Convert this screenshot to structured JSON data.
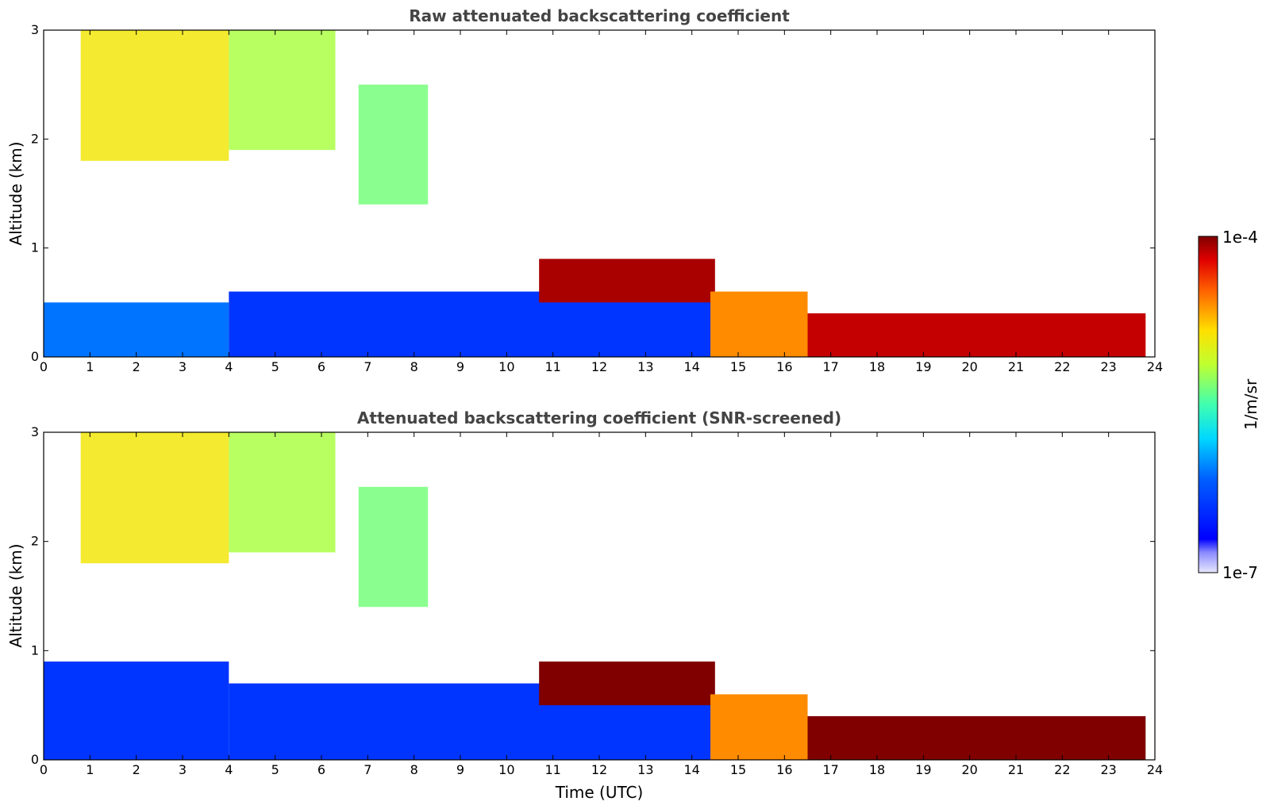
{
  "chart_data": [
    {
      "type": "heatmap",
      "title": "Raw attenuated backscattering coefficient",
      "xlabel": "",
      "ylabel": "Altitude (km)",
      "xlim": [
        0,
        24
      ],
      "ylim": [
        0,
        3
      ],
      "xticks": [
        "0",
        "1",
        "2",
        "3",
        "4",
        "5",
        "6",
        "7",
        "8",
        "9",
        "10",
        "11",
        "12",
        "13",
        "14",
        "15",
        "16",
        "17",
        "18",
        "19",
        "20",
        "21",
        "22",
        "23",
        "24"
      ],
      "yticks": [
        "0",
        "1",
        "2",
        "3"
      ],
      "features": [
        {
          "kind": "cirrus",
          "t": [
            0.8,
            4.0
          ],
          "alt": [
            1.8,
            3.0
          ],
          "level": 0.7
        },
        {
          "kind": "cirrus",
          "t": [
            4.0,
            6.3
          ],
          "alt": [
            1.9,
            3.0
          ],
          "level": 0.6
        },
        {
          "kind": "cirrus",
          "t": [
            6.8,
            8.3
          ],
          "alt": [
            1.4,
            2.5
          ],
          "level": 0.55
        },
        {
          "kind": "boundary-layer",
          "t": [
            0,
            4.0
          ],
          "alt": [
            0,
            0.5
          ],
          "level": 0.3
        },
        {
          "kind": "boundary-layer",
          "t": [
            4.0,
            14.4
          ],
          "alt": [
            0,
            0.6
          ],
          "level": 0.2
        },
        {
          "kind": "cloud-top",
          "t": [
            10.7,
            14.5
          ],
          "alt": [
            0.5,
            0.9
          ],
          "level": 0.97
        },
        {
          "kind": "fog",
          "t": [
            14.4,
            16.5
          ],
          "alt": [
            0,
            0.6
          ],
          "level": 0.8
        },
        {
          "kind": "fog",
          "t": [
            16.5,
            23.8
          ],
          "alt": [
            0,
            0.4
          ],
          "level": 0.95
        }
      ]
    },
    {
      "type": "heatmap",
      "title": "Attenuated backscattering coefficient (SNR-screened)",
      "xlabel": "Time (UTC)",
      "ylabel": "Altitude (km)",
      "xlim": [
        0,
        24
      ],
      "ylim": [
        0,
        3
      ],
      "xticks": [
        "0",
        "1",
        "2",
        "3",
        "4",
        "5",
        "6",
        "7",
        "8",
        "9",
        "10",
        "11",
        "12",
        "13",
        "14",
        "15",
        "16",
        "17",
        "18",
        "19",
        "20",
        "21",
        "22",
        "23",
        "24"
      ],
      "yticks": [
        "0",
        "1",
        "2",
        "3"
      ],
      "features": [
        {
          "kind": "cirrus",
          "t": [
            0.8,
            4.0
          ],
          "alt": [
            1.8,
            3.0
          ],
          "level": 0.7
        },
        {
          "kind": "cirrus",
          "t": [
            4.0,
            6.3
          ],
          "alt": [
            1.9,
            3.0
          ],
          "level": 0.6
        },
        {
          "kind": "cirrus",
          "t": [
            6.8,
            8.3
          ],
          "alt": [
            1.4,
            2.5
          ],
          "level": 0.55
        },
        {
          "kind": "aerosol",
          "t": [
            0,
            4.0
          ],
          "alt": [
            0,
            0.9
          ],
          "level": 0.2
        },
        {
          "kind": "boundary-layer",
          "t": [
            4.0,
            14.4
          ],
          "alt": [
            0,
            0.7
          ],
          "level": 0.2
        },
        {
          "kind": "cloud-top",
          "t": [
            10.7,
            14.5
          ],
          "alt": [
            0.5,
            0.9
          ],
          "level": 1.0
        },
        {
          "kind": "fog",
          "t": [
            14.4,
            16.5
          ],
          "alt": [
            0,
            0.6
          ],
          "level": 0.8
        },
        {
          "kind": "fog",
          "t": [
            16.5,
            23.8
          ],
          "alt": [
            0,
            0.4
          ],
          "level": 1.0
        }
      ]
    }
  ],
  "colorbar": {
    "label": "1/m/sr",
    "max_label": "1e-4",
    "min_label": "1e-7",
    "colormap": "jet"
  }
}
